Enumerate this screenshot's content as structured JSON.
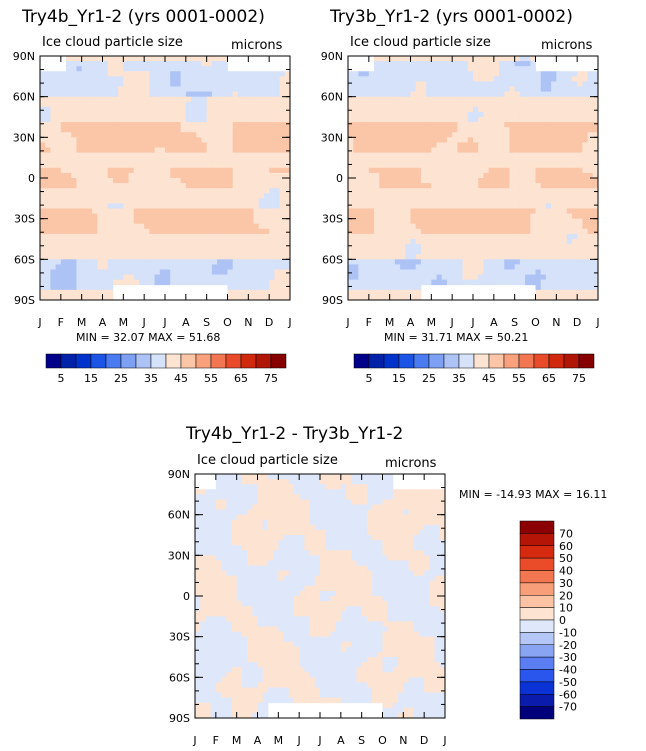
{
  "colors": {
    "seq": [
      "#00008b",
      "#0022a8",
      "#0033cc",
      "#1c54e6",
      "#4a7bf0",
      "#7ea0f2",
      "#aec3f5",
      "#d5e2fa",
      "#fde3d1",
      "#fbc6a8",
      "#f8a17c",
      "#f27651",
      "#e84a2a",
      "#d1290e",
      "#b01605",
      "#870000"
    ],
    "diff": [
      "#00007a",
      "#0b1bab",
      "#0a32d4",
      "#2a56ee",
      "#5a7ef2",
      "#89a4f3",
      "#b4c7f6",
      "#dfe8fb",
      "#fde3d1",
      "#fbc3a3",
      "#f89e78",
      "#f2764f",
      "#ea4b28",
      "#d52a0f",
      "#b41507",
      "#8b0000"
    ]
  },
  "panels": [
    {
      "id": "try4b",
      "title": "Try4b_Yr1-2 (yrs 0001-0002)",
      "left_label": "Ice cloud particle size",
      "right_label": "microns",
      "stats": "MIN =   32.07  MAX =   51.68"
    },
    {
      "id": "try3b",
      "title": "Try3b_Yr1-2 (yrs 0001-0002)",
      "left_label": "Ice cloud particle size",
      "right_label": "microns",
      "stats": "MIN =   31.71  MAX =   50.21"
    },
    {
      "id": "diff",
      "title": "Try4b_Yr1-2 - Try3b_Yr1-2",
      "left_label": "Ice cloud particle size",
      "right_label": "microns",
      "stats": "MIN = -14.93  MAX =   16.11"
    }
  ],
  "chart_data": [
    {
      "type": "heatmap",
      "title": "Try4b_Yr1-2 (yrs 0001-0002)",
      "variable": "Ice cloud particle size",
      "units": "microns",
      "x_ticks": [
        "J",
        "F",
        "M",
        "A",
        "M",
        "J",
        "J",
        "A",
        "S",
        "O",
        "N",
        "D",
        "J"
      ],
      "y_ticks": [
        "90N",
        "60N",
        "30N",
        "0",
        "30S",
        "60S",
        "90S"
      ],
      "ylim": [
        -90,
        90
      ],
      "min": 32.07,
      "max": 51.68,
      "bands": [
        {
          "lat_range": [
            60,
            85
          ],
          "dominant_value": 42
        },
        {
          "lat_range": [
            20,
            40
          ],
          "dominant_value": 47
        },
        {
          "lat_range": [
            -5,
            5
          ],
          "dominant_value": 46
        },
        {
          "lat_range": [
            -40,
            -25
          ],
          "dominant_value": 47
        },
        {
          "lat_range": [
            -80,
            -60
          ],
          "dominant_value": 37
        }
      ],
      "colorbar_labels": [
        "5",
        "15",
        "25",
        "35",
        "45",
        "55",
        "65",
        "75"
      ]
    },
    {
      "type": "heatmap",
      "title": "Try3b_Yr1-2 (yrs 0001-0002)",
      "variable": "Ice cloud particle size",
      "units": "microns",
      "x_ticks": [
        "J",
        "F",
        "M",
        "A",
        "M",
        "J",
        "J",
        "A",
        "S",
        "O",
        "N",
        "D",
        "J"
      ],
      "y_ticks": [
        "90N",
        "60N",
        "30N",
        "0",
        "30S",
        "60S",
        "90S"
      ],
      "ylim": [
        -90,
        90
      ],
      "min": 31.71,
      "max": 50.21,
      "bands": [
        {
          "lat_range": [
            60,
            85
          ],
          "dominant_value": 42
        },
        {
          "lat_range": [
            20,
            40
          ],
          "dominant_value": 47
        },
        {
          "lat_range": [
            -5,
            5
          ],
          "dominant_value": 46
        },
        {
          "lat_range": [
            -40,
            -25
          ],
          "dominant_value": 47
        },
        {
          "lat_range": [
            -80,
            -60
          ],
          "dominant_value": 37
        }
      ],
      "colorbar_labels": [
        "5",
        "15",
        "25",
        "35",
        "45",
        "55",
        "65",
        "75"
      ]
    },
    {
      "type": "heatmap",
      "title": "Try4b_Yr1-2 - Try3b_Yr1-2",
      "variable": "Ice cloud particle size",
      "units": "microns",
      "x_ticks": [
        "J",
        "F",
        "M",
        "A",
        "M",
        "J",
        "J",
        "A",
        "S",
        "O",
        "N",
        "D",
        "J"
      ],
      "y_ticks": [
        "90N",
        "60N",
        "30N",
        "0",
        "30S",
        "60S",
        "90S"
      ],
      "ylim": [
        -90,
        90
      ],
      "min": -14.93,
      "max": 16.11,
      "colorbar_labels": [
        "70",
        "60",
        "50",
        "40",
        "30",
        "20",
        "10",
        "0",
        "-10",
        "-20",
        "-30",
        "-40",
        "-50",
        "-60",
        "-70"
      ]
    }
  ]
}
